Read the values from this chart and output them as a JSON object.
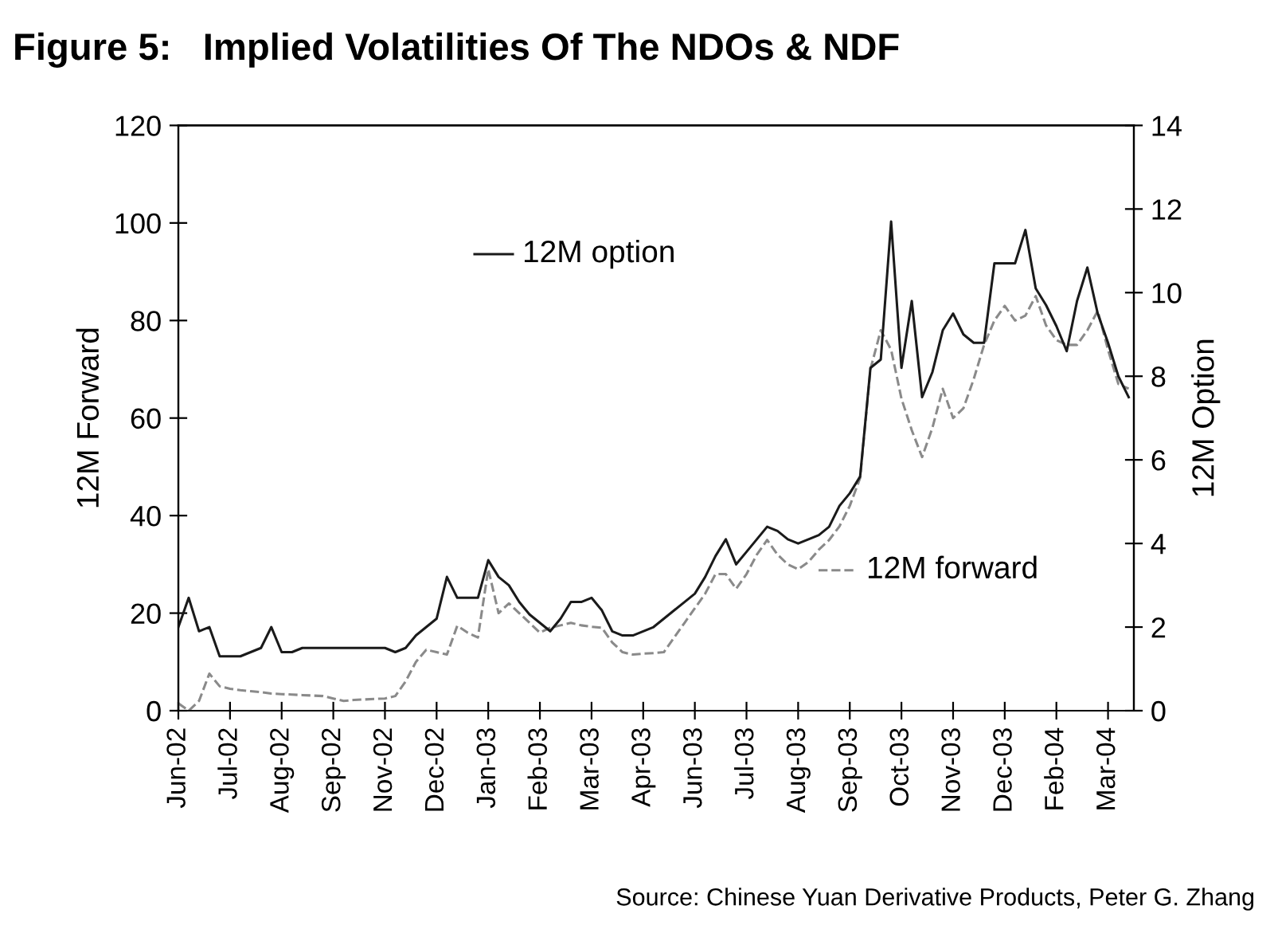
{
  "chart_data": {
    "type": "line",
    "title": "Figure 5:   Implied Volatilities Of The NDOs & NDF",
    "ylabel": "12M Forward",
    "y2label": "12M Option",
    "annotations": [
      "Source: Chinese Yuan Derivative Products, Peter G. Zhang"
    ],
    "categories": [
      "Jun-02",
      null,
      null,
      null,
      null,
      "Jul-02",
      null,
      null,
      null,
      null,
      "Aug-02",
      null,
      null,
      null,
      null,
      "Sep-02",
      null,
      null,
      null,
      null,
      "Nov-02",
      null,
      null,
      null,
      null,
      "Dec-02",
      null,
      null,
      null,
      null,
      "Jan-03",
      null,
      null,
      null,
      null,
      "Feb-03",
      null,
      null,
      null,
      null,
      "Mar-03",
      null,
      null,
      null,
      null,
      "Apr-03",
      null,
      null,
      null,
      null,
      "Jun-03",
      null,
      null,
      null,
      null,
      "Jul-03",
      null,
      null,
      null,
      null,
      "Aug-03",
      null,
      null,
      null,
      null,
      "Sep-03",
      null,
      null,
      null,
      null,
      "Oct-03",
      null,
      null,
      null,
      null,
      "Nov-03",
      null,
      null,
      null,
      null,
      "Dec-03",
      null,
      null,
      null,
      null,
      "Feb-04",
      null,
      null,
      null,
      null,
      "Mar-04",
      null,
      null
    ],
    "ylim": [
      0,
      120
    ],
    "yticks": [
      0,
      20,
      40,
      60,
      80,
      100,
      120
    ],
    "y2lim": [
      0,
      14
    ],
    "y2ticks": [
      0,
      2,
      4,
      6,
      8,
      10,
      12,
      14
    ],
    "grid": false,
    "legend": "top",
    "marker": "none",
    "series": [
      {
        "name": "12M option",
        "axis": "y2",
        "color": "#1a1a1a",
        "line_style": "solid",
        "values": [
          2.0,
          2.7,
          1.9,
          2.0,
          1.3,
          1.3,
          1.3,
          1.4,
          1.5,
          2.0,
          1.4,
          1.4,
          1.5,
          1.5,
          1.5,
          1.5,
          1.5,
          1.5,
          1.5,
          1.5,
          1.5,
          1.4,
          1.5,
          1.8,
          2.0,
          2.2,
          3.2,
          2.7,
          2.7,
          2.7,
          3.6,
          3.2,
          3.0,
          2.6,
          2.3,
          2.1,
          1.9,
          2.2,
          2.6,
          2.6,
          2.7,
          2.4,
          1.9,
          1.8,
          1.8,
          1.9,
          2.0,
          2.2,
          2.4,
          2.6,
          2.8,
          3.2,
          3.7,
          4.1,
          3.5,
          3.8,
          4.1,
          4.4,
          4.3,
          4.1,
          4.0,
          4.1,
          4.2,
          4.4,
          4.9,
          5.2,
          5.6,
          8.2,
          8.4,
          11.7,
          8.2,
          9.8,
          7.5,
          8.1,
          9.1,
          9.5,
          9.0,
          8.8,
          8.8,
          10.7,
          10.7,
          10.7,
          11.5,
          10.1,
          9.7,
          9.2,
          8.6,
          9.8,
          10.6,
          9.5,
          8.8,
          8.0,
          7.5
        ]
      },
      {
        "name": "12M forward",
        "axis": "y",
        "color": "#8a8a8a",
        "line_style": "dashed",
        "values": [
          1.5,
          0,
          2,
          7.6,
          5,
          4.5,
          4.2,
          4,
          3.8,
          3.5,
          3.4,
          3.3,
          3.2,
          3.1,
          3,
          2.5,
          2,
          2.2,
          2.3,
          2.4,
          2.5,
          3,
          6,
          10,
          12.5,
          12,
          11.5,
          17.4,
          16,
          15,
          29,
          20,
          22,
          20,
          18,
          16,
          17,
          17.5,
          18,
          17.5,
          17.2,
          17,
          14,
          12,
          11.5,
          11.7,
          11.8,
          12,
          15,
          18,
          21,
          24,
          28,
          28,
          25,
          28,
          32,
          35,
          32,
          30,
          29,
          30.5,
          33,
          35,
          37.8,
          42,
          47.7,
          70,
          78,
          74,
          64,
          57.5,
          52,
          58,
          66,
          60,
          62,
          68,
          75,
          80,
          83,
          80,
          81,
          85,
          79,
          76,
          75,
          75,
          78,
          82,
          74,
          67,
          66
        ]
      }
    ]
  }
}
